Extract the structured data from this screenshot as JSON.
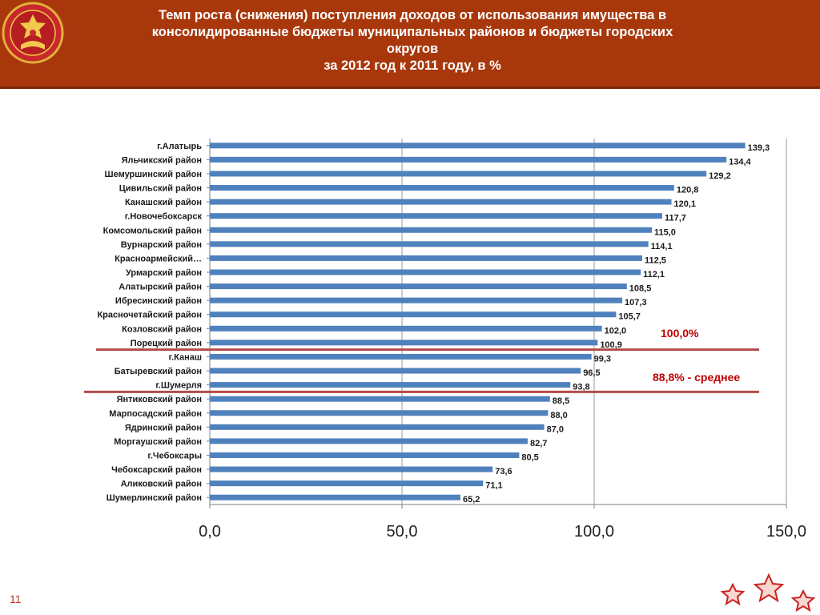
{
  "header": {
    "title_lines": [
      "Темп роста (снижения) поступления  доходов от использования имущества в",
      "консолидированные бюджеты муниципальных районов и бюджеты городских",
      "округов",
      "за 2012 год к 2011 году, в %"
    ]
  },
  "slide_number": "11",
  "colors": {
    "header_bg": "#a8380c",
    "bar": "#4f81bd",
    "reference_line": "#b44a4a",
    "annotation_text": "#c00000",
    "star": "#ffffff"
  },
  "icons": [
    "emblem-icon",
    "star-icon"
  ],
  "chart_data": {
    "type": "bar",
    "orientation": "horizontal",
    "categories": [
      "г.Алатырь",
      "Яльчикский район",
      "Шемуршинский район",
      "Цивильский район",
      "Канашский район",
      "г.Новочебоксарск",
      "Комсомольский район",
      "Вурнарский район",
      "Красноармейский…",
      "Урмарский район",
      "Алатырский район",
      "Ибресинский район",
      "Красночетайский район",
      "Козловский район",
      "Порецкий район",
      "г.Канаш",
      "Батыревский район",
      "г.Шумерля",
      "Янтиковский район",
      "Марпосадский район",
      "Ядринский район",
      "Моргаушский район",
      "г.Чебоксары",
      "Чебоксарский район",
      "Аликовский район",
      "Шумерлинский район"
    ],
    "values": [
      139.3,
      134.4,
      129.2,
      120.8,
      120.1,
      117.7,
      115.0,
      114.1,
      112.5,
      112.1,
      108.5,
      107.3,
      105.7,
      102.0,
      100.9,
      99.3,
      96.5,
      93.8,
      88.5,
      88.0,
      87.0,
      82.7,
      80.5,
      73.6,
      71.1,
      65.2
    ],
    "value_labels": [
      "139,3",
      "134,4",
      "129,2",
      "120,8",
      "120,1",
      "117,7",
      "115,0",
      "114,1",
      "112,5",
      "112,1",
      "108,5",
      "107,3",
      "105,7",
      "102,0",
      "100,9",
      "99,3",
      "96,5",
      "93,8",
      "88,5",
      "88,0",
      "87,0",
      "82,7",
      "80,5",
      "73,6",
      "71,1",
      "65,2"
    ],
    "x_ticks": [
      0,
      50,
      100,
      150
    ],
    "x_tick_labels": [
      "0,0",
      "50,0",
      "100,0",
      "150,0"
    ],
    "xlim": [
      0,
      150
    ],
    "grid": true,
    "annotations": [
      {
        "text": "100,0%",
        "line_after_category": "Порецкий район"
      },
      {
        "text": "88,8%  - среднее",
        "line_after_category": "г.Шумерля"
      }
    ]
  }
}
